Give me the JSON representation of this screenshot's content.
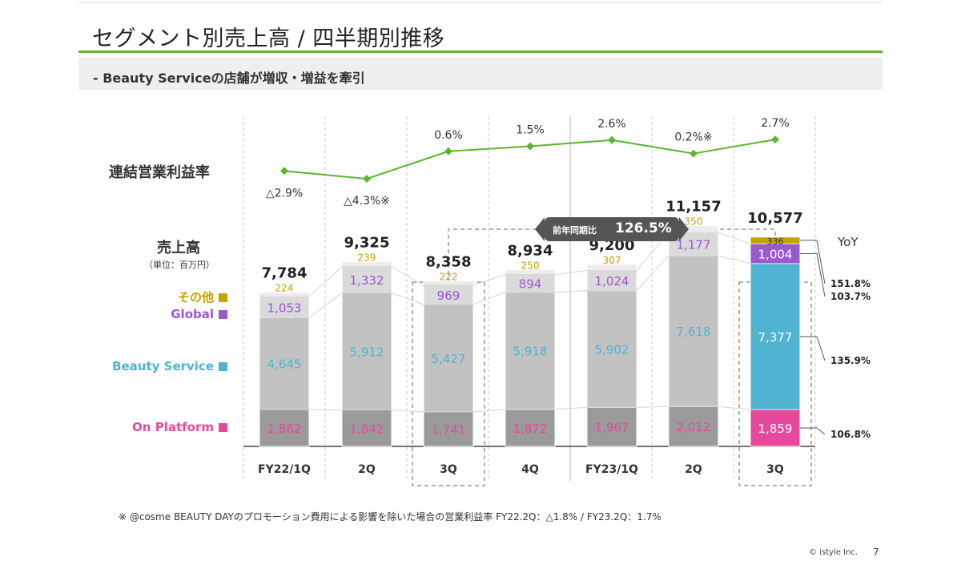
{
  "header": {
    "title": "セグメント別売上高 / 四半期別推移",
    "subtitle": "- Beauty Serviceの店舗が増収・増益を牽引"
  },
  "labels": {
    "margin_row": "連結営業利益率",
    "sales_row": "売上高",
    "unit": "（単位：百万円）",
    "yoy_header": "YoY"
  },
  "legend": [
    {
      "label": "その他",
      "color": "#c8a000"
    },
    {
      "label": "Global",
      "color": "#9b59d0"
    },
    {
      "label": "Beauty Service",
      "color": "#4fb3d1"
    },
    {
      "label": "On Platform",
      "color": "#e8489b"
    }
  ],
  "badge": {
    "label": "前年同期比",
    "value": "126.5%"
  },
  "footnote": "※ @cosme BEAUTY DAYのプロモーション費用による影響を除いた場合の営業利益率 FY22.2Q：△1.8% / FY23.2Q：1.7%",
  "footer": {
    "copyright": "© istyle Inc.",
    "page": "7"
  },
  "chart_data": {
    "type": "bar",
    "stacked": true,
    "categories": [
      "FY22/1Q",
      "2Q",
      "3Q",
      "4Q",
      "FY23/1Q",
      "2Q",
      "3Q"
    ],
    "series": [
      {
        "name": "On Platform",
        "values": [
          1862,
          1842,
          1741,
          1872,
          1967,
          2012,
          1859
        ],
        "labels": [
          "1,862",
          "1,842",
          "1,741",
          "1,872",
          "1,967",
          "2,012",
          "1,859"
        ]
      },
      {
        "name": "Beauty Service",
        "values": [
          4645,
          5912,
          5427,
          5918,
          5902,
          7618,
          7377
        ],
        "labels": [
          "4,645",
          "5,912",
          "5,427",
          "5,918",
          "5,902",
          "7,618",
          "7,377"
        ]
      },
      {
        "name": "Global",
        "values": [
          1053,
          1332,
          969,
          894,
          1024,
          1177,
          1004
        ],
        "labels": [
          "1,053",
          "1,332",
          "969",
          "894",
          "1,024",
          "1,177",
          "1,004"
        ]
      },
      {
        "name": "その他",
        "values": [
          224,
          239,
          222,
          250,
          307,
          350,
          336
        ],
        "labels": [
          "224",
          "239",
          "222",
          "250",
          "307",
          "350",
          "336"
        ]
      }
    ],
    "totals": [
      "7,784",
      "9,325",
      "8,358",
      "8,934",
      "9,200",
      "11,157",
      "10,577"
    ],
    "operating_margin": {
      "values": [
        -2.9,
        -4.3,
        0.6,
        1.5,
        2.6,
        0.2,
        2.7
      ],
      "labels": [
        "△2.9%",
        "△4.3%※",
        "0.6%",
        "1.5%",
        "2.6%",
        "0.2%※",
        "2.7%"
      ]
    },
    "yoy": [
      {
        "series": "その他",
        "value": "151.8%"
      },
      {
        "series": "Global",
        "value": "103.7%"
      },
      {
        "series": "Beauty Service",
        "value": "135.9%"
      },
      {
        "series": "On Platform",
        "value": "106.8%"
      }
    ],
    "highlighted_categories": [
      2,
      6
    ]
  }
}
